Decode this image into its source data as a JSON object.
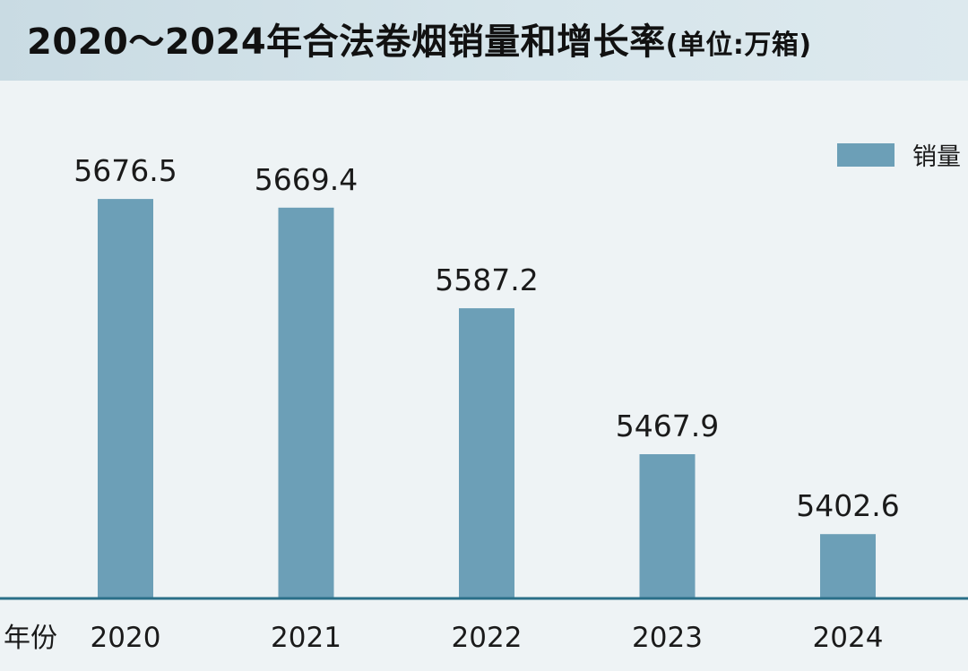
{
  "header": {
    "title": "2020～2024年合法卷烟销量和增长率",
    "unit": "(单位:万箱)"
  },
  "colors": {
    "bar": "#6c9fb7",
    "axis": "#2a6f88"
  },
  "chart_data": {
    "type": "bar",
    "title": "2020～2024年合法卷烟销量和增长率",
    "unit_label": "(单位:万箱)",
    "xlabel": "年份",
    "ylabel": "",
    "categories": [
      "2020",
      "2021",
      "2022",
      "2023",
      "2024"
    ],
    "series": [
      {
        "name": "销量",
        "values": [
          5676.5,
          5669.4,
          5587.2,
          5467.9,
          5402.6
        ],
        "labels": [
          "5676.5",
          "5669.4",
          "5587.2",
          "5467.9",
          "5402.6"
        ]
      }
    ],
    "ylim": [
      5350,
      5700
    ],
    "legend_position": "top-right",
    "grid": false
  }
}
